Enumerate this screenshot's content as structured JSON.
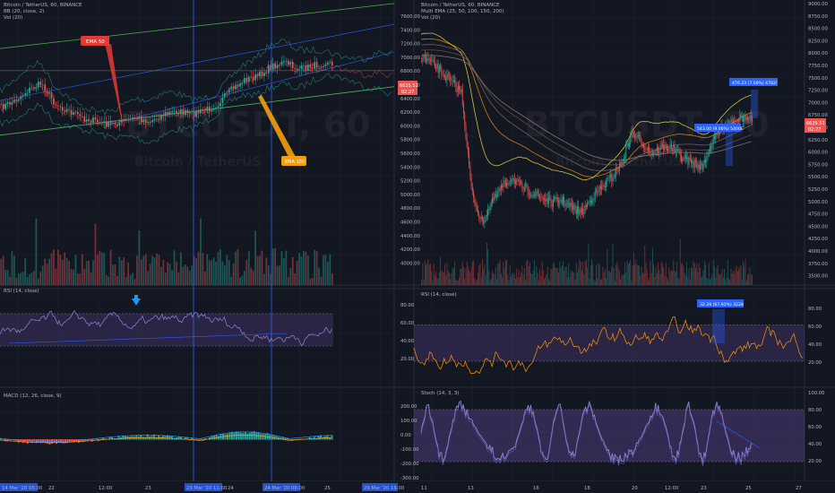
{
  "colors": {
    "bg": "#131722",
    "grid": "#1e222d",
    "up": "#26a69a",
    "down": "#ef5350",
    "rsi_band": "#7e57c2",
    "stoch_line": "#8e88d6",
    "rsi_line": "#ff9800",
    "macd": "#2196f3",
    "signal": "#ff9800"
  },
  "left": {
    "title": "Bitcoin / TetherUS, 60, BINANCE",
    "bb_label": "BB (20, close, 2)",
    "vol_label": "Vol (20)",
    "watermark": "BTCUSDT, 60",
    "watermark_sub": "Bitcoin / TetherUS",
    "rsi_label": "RSI (14, close)",
    "macd_label": "MACD (12, 26, close, 9)",
    "callout_ema50": "EMA 50",
    "callout_ema100": "EMA 100",
    "x_ticks": [
      "14 Mar '20  05:00",
      "22",
      "12:00",
      "23",
      "23 Mar '20  11:00",
      "24",
      "24 Mar '20  08:00",
      "25"
    ]
  },
  "right": {
    "title": "Bitcoin / TetherUS, 60, BINANCE",
    "ema_label": "Multi EMA (25, 50, 100, 150, 200)",
    "vol_label": "Vol (20)",
    "watermark": "BTCUSDT, 60",
    "watermark_sub": "Bitcoin / TetherUS",
    "rsi_label": "RSI (14, close)",
    "stoch_label": "Stoch (14, 3, 3)",
    "measure1": "476.23 (7.00%) 4782!",
    "measure2": "543.00 (9.06%) 5400E",
    "measure3": "32.28 (67.91%) 3228",
    "x_ticks": [
      "11",
      "13",
      "16",
      "18",
      "20",
      "12:00",
      "23",
      "25",
      "27"
    ],
    "left_bottom_tag": "29 Mar '20  16:00"
  },
  "mid_axis": {
    "price_ticks": [
      "7600.00",
      "7400.00",
      "7200.00",
      "7000.00",
      "6800.00",
      "6600.00",
      "6400.00",
      "6200.00",
      "6000.00",
      "5800.00",
      "5600.00",
      "5400.00",
      "5200.00",
      "5000.00",
      "4800.00",
      "4600.00",
      "4400.00",
      "4200.00",
      "4000.00"
    ],
    "price_tag1": "6635.51",
    "price_tag2": "02:27",
    "rsi_ticks": [
      "80.00",
      "60.00",
      "40.00",
      "20.00"
    ],
    "macd_ticks": [
      "200.00",
      "100.00",
      "0.00",
      "-100.00",
      "-200.00",
      "-300.00"
    ]
  },
  "right_axis": {
    "price_ticks": [
      "9000.00",
      "8750.00",
      "8500.00",
      "8250.00",
      "8000.00",
      "7750.00",
      "7500.00",
      "7250.00",
      "7000.00",
      "6750.00",
      "6500.00",
      "6250.00",
      "6000.00",
      "5750.00",
      "5500.00",
      "5250.00",
      "5000.00",
      "4750.00",
      "4500.00",
      "4250.00",
      "4000.00",
      "3750.00",
      "3500.00"
    ],
    "price_tag1": "6635.51",
    "price_tag2": "02:27",
    "rsi_ticks": [
      "80.00",
      "60.00",
      "40.00",
      "20.00"
    ],
    "stoch_ticks": [
      "100.00",
      "80.00",
      "60.00",
      "40.00",
      "20.00"
    ]
  },
  "chart_data": [
    {
      "type": "candlestick",
      "title": "Bitcoin / TetherUS, 60, BINANCE",
      "ylim": [
        3950,
        7700
      ],
      "series": [
        {
          "name": "BB (20, close, 2)"
        },
        {
          "name": "Vol (20)"
        }
      ],
      "close_approx": [
        6150,
        6250,
        6400,
        6500,
        6200,
        6100,
        6000,
        5950,
        5900,
        5950,
        6000,
        5950,
        6050,
        6100,
        6050,
        6100,
        6200,
        6400,
        6550,
        6600,
        6750,
        6800,
        6700,
        6750,
        6800,
        6750,
        6700,
        6650,
        6680,
        6640
      ],
      "annotations": [
        "EMA 50",
        "EMA 100"
      ]
    },
    {
      "type": "candlestick",
      "title": "Bitcoin / TetherUS, 60, BINANCE",
      "ylim": [
        3350,
        9050
      ],
      "series": [
        {
          "name": "Multi EMA (25, 50, 100, 150, 200)"
        },
        {
          "name": "Vol (20)"
        }
      ],
      "close_approx": [
        7900,
        7800,
        7600,
        7400,
        7200,
        5200,
        4600,
        5000,
        5300,
        5500,
        5300,
        5200,
        5100,
        5000,
        5050,
        4900,
        4800,
        5100,
        5300,
        5500,
        5800,
        6400,
        6200,
        6000,
        6100,
        6100,
        5900,
        5800,
        5700,
        6200,
        6500,
        6650,
        6700,
        6650
      ],
      "annotations": [
        "476.23 (7.00%) 4782!",
        "543.00 (9.06%) 5400E"
      ]
    },
    {
      "type": "line",
      "title": "RSI (14, close)",
      "ylim": [
        0,
        100
      ],
      "series": [
        {
          "name": "RSI (14, close)"
        }
      ]
    },
    {
      "type": "line",
      "title": "MACD (12, 26, close, 9)",
      "series": [
        {
          "name": "MACD (12, 26, close, 9)"
        }
      ]
    },
    {
      "type": "line",
      "title": "RSI (14, close)",
      "ylim": [
        0,
        100
      ],
      "series": [
        {
          "name": "RSI (14, close)"
        }
      ],
      "annotations": [
        "32.28 (67.91%) 3228"
      ]
    },
    {
      "type": "line",
      "title": "Stoch (14, 3, 3)",
      "ylim": [
        0,
        100
      ],
      "series": [
        {
          "name": "Stoch (14, 3, 3)"
        }
      ]
    }
  ]
}
